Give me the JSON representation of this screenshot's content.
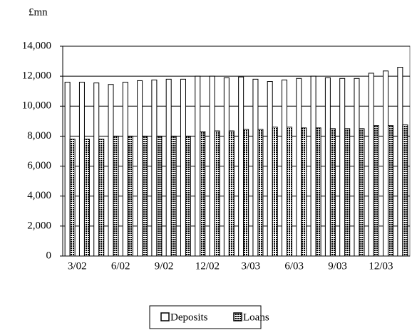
{
  "chart_data": {
    "type": "bar",
    "unit_label": "£mn",
    "categories": [
      null,
      "3/02",
      null,
      null,
      "6/02",
      null,
      null,
      "9/02",
      null,
      null,
      "12/02",
      null,
      null,
      "3/03",
      null,
      null,
      "6/03",
      null,
      null,
      "9/03",
      null,
      null,
      "12/03",
      null
    ],
    "series": [
      {
        "name": "Deposits",
        "color": "#ffffff",
        "values": [
          11600,
          11600,
          11550,
          11450,
          11600,
          11700,
          11750,
          11800,
          11800,
          12000,
          12000,
          11900,
          11950,
          11800,
          11650,
          11750,
          11850,
          12000,
          11900,
          11850,
          11850,
          12200,
          12350,
          12600
        ]
      },
      {
        "name": "Loans",
        "color": "#000000",
        "values": [
          7800,
          7800,
          7800,
          8000,
          8000,
          8000,
          8000,
          8000,
          8000,
          8300,
          8350,
          8350,
          8450,
          8450,
          8600,
          8600,
          8550,
          8550,
          8500,
          8500,
          8500,
          8700,
          8700,
          8750
        ]
      }
    ],
    "ylim": [
      0,
      14000
    ],
    "yticks": [
      0,
      {
        "value": 2000,
        "label": "2,000"
      },
      {
        "value": 4000,
        "label": "4,000"
      },
      {
        "value": 6000,
        "label": "6,000"
      },
      {
        "value": 8000,
        "label": "8,000"
      },
      {
        "value": 10000,
        "label": "10,000"
      },
      {
        "value": 12000,
        "label": "12,000"
      },
      {
        "value": 14000,
        "label": "14,000"
      }
    ],
    "grid": true,
    "legend": "bottom"
  }
}
